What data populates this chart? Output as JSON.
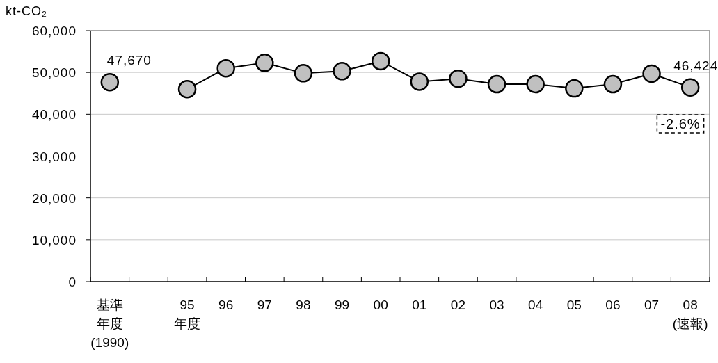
{
  "chart_data": {
    "type": "line",
    "ylabel": "kt-CO₂",
    "categories": [
      "基準年度(1990)",
      null,
      "95年度",
      "96",
      "97",
      "98",
      "99",
      "00",
      "01",
      "02",
      "03",
      "04",
      "05",
      "06",
      "07",
      "08(速報)"
    ],
    "values": [
      47670,
      null,
      46000,
      51000,
      52300,
      49800,
      50300,
      52700,
      47800,
      48500,
      47200,
      47200,
      46200,
      47200,
      49700,
      46424
    ],
    "value_labels": [
      "47,670",
      null,
      null,
      null,
      null,
      null,
      null,
      null,
      null,
      null,
      null,
      null,
      null,
      null,
      null,
      "46,424"
    ],
    "color": "#c0c0c0",
    "marker": "circle",
    "line_style": "solid",
    "ylim": [
      0,
      60000
    ],
    "yticks": [
      0,
      {
        "value": 10000,
        "label": "10,000"
      },
      {
        "value": 20000,
        "label": "20,000"
      },
      {
        "value": 30000,
        "label": "30,000"
      },
      {
        "value": 40000,
        "label": "40,000"
      },
      {
        "value": 50000,
        "label": "50,000"
      },
      {
        "value": 60000,
        "label": "60,000"
      }
    ],
    "grid": "y",
    "annotations": [
      "-2.6%"
    ]
  }
}
